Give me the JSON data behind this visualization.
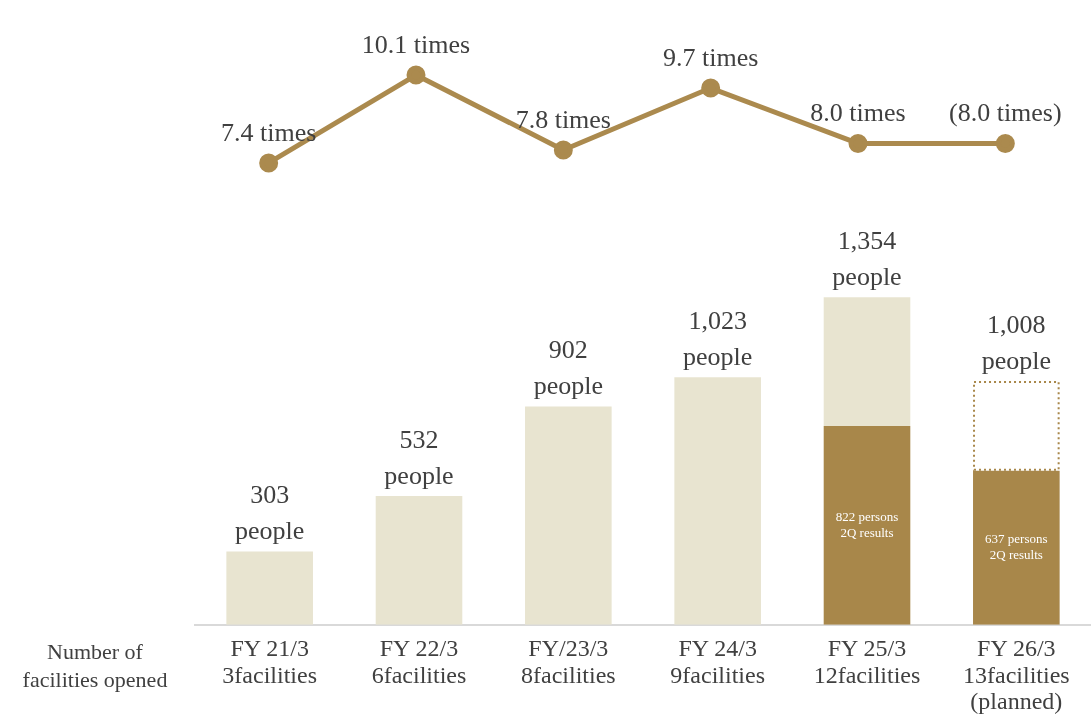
{
  "chart_data": [
    {
      "type": "line",
      "categories": [
        null,
        null,
        null,
        null,
        null,
        null
      ],
      "series": [
        {
          "color": "#ab8a4e",
          "marker": "circle",
          "values": [
            7.4,
            10.1,
            7.8,
            9.7,
            8.0,
            8.0
          ],
          "value_labels": [
            "7.4 times",
            "10.1 times",
            "7.8 times",
            "9.7 times",
            "8.0 times",
            "(8.0 times)"
          ]
        }
      ],
      "tick_labels": false,
      "grid": false,
      "legend": false
    },
    {
      "type": "bar",
      "categories": [
        "FY 21/3\n3facilities",
        "FY 22/3\n6facilities",
        "FY/23/3\n8facilities",
        "FY 24/3\n9facilities",
        "FY 25/3\n12facilities",
        "FY 26/3\n13facilities\n(planned)"
      ],
      "stacked": true,
      "series": [
        {
          "color": "#a8874a",
          "values": [
            null,
            null,
            null,
            null,
            822,
            637
          ],
          "value_labels": [
            null,
            null,
            null,
            null,
            "822 persons\n2Q results",
            "637 persons\n2Q results"
          ]
        },
        {
          "color": "#e8e4d0",
          "values": [
            303,
            532,
            902,
            1023,
            532,
            null
          ]
        },
        {
          "color": "#a8874a",
          "line_style": "dotted",
          "values": [
            null,
            null,
            null,
            null,
            null,
            371
          ]
        }
      ],
      "totals": [
        "303\npeople",
        "532\npeople",
        "902\npeople",
        "1,023\npeople",
        "1,354\npeople",
        "1,008\npeople"
      ],
      "tick_labels": "x",
      "grid": false,
      "legend": false,
      "annotations": [
        "Number of\nfacilities opened"
      ]
    }
  ]
}
